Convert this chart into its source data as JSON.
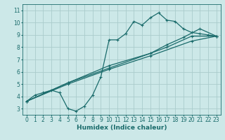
{
  "background_color": "#cce8e8",
  "grid_color": "#aacccc",
  "line_color": "#1a6b6b",
  "line_width": 0.9,
  "marker": "+",
  "marker_size": 3.5,
  "marker_lw": 0.8,
  "xlabel": "Humidex (Indice chaleur)",
  "xlabel_fontsize": 6.5,
  "tick_fontsize": 5.5,
  "xlim": [
    -0.5,
    23.5
  ],
  "ylim": [
    2.5,
    11.5
  ],
  "yticks": [
    3,
    4,
    5,
    6,
    7,
    8,
    9,
    10,
    11
  ],
  "xticks": [
    0,
    1,
    2,
    3,
    4,
    5,
    6,
    7,
    8,
    9,
    10,
    11,
    12,
    13,
    14,
    15,
    16,
    17,
    18,
    19,
    20,
    21,
    22,
    23
  ],
  "curve1_x": [
    0,
    1,
    2,
    3,
    4,
    5,
    6,
    7,
    8,
    9,
    10,
    11,
    12,
    13,
    14,
    15,
    16,
    17,
    18,
    19,
    20,
    21,
    22,
    23
  ],
  "curve1_y": [
    3.6,
    4.1,
    4.3,
    4.5,
    4.3,
    3.0,
    2.8,
    3.2,
    4.1,
    5.6,
    8.6,
    8.6,
    9.1,
    10.1,
    9.8,
    10.4,
    10.8,
    10.2,
    10.1,
    9.5,
    9.2,
    9.1,
    9.0,
    8.9
  ],
  "curve2_x": [
    0,
    5,
    10,
    15,
    20,
    23
  ],
  "curve2_y": [
    3.6,
    5.0,
    6.2,
    7.3,
    8.5,
    8.9
  ],
  "curve3_x": [
    0,
    5,
    10,
    15,
    17,
    20,
    23
  ],
  "curve3_y": [
    3.6,
    5.1,
    6.3,
    7.5,
    8.0,
    8.9,
    8.9
  ],
  "curve4_x": [
    0,
    5,
    10,
    15,
    17,
    19,
    21,
    23
  ],
  "curve4_y": [
    3.6,
    5.1,
    6.5,
    7.5,
    8.2,
    8.8,
    9.5,
    8.9
  ]
}
